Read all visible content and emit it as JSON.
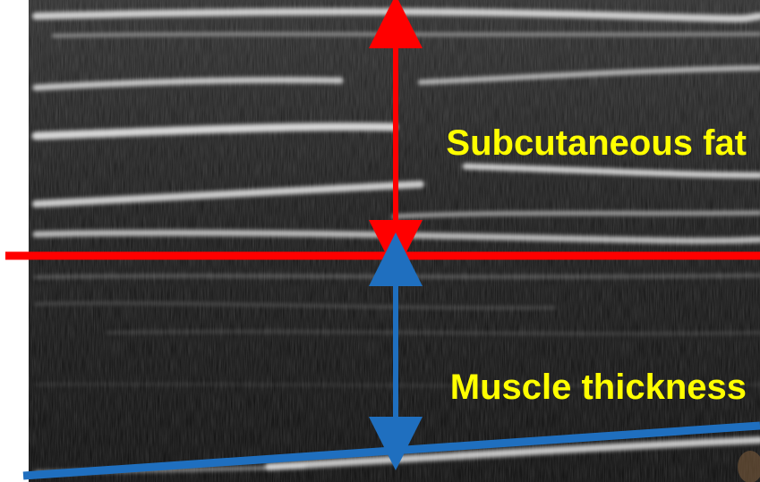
{
  "labels": {
    "fat": "Subcutaneous fat",
    "muscle": "Muscle thickness"
  },
  "colors": {
    "fat_marker": "#ff0000",
    "muscle_marker": "#1f6fbf",
    "label_text": "#ffff00",
    "background": "#0b0b0b"
  }
}
